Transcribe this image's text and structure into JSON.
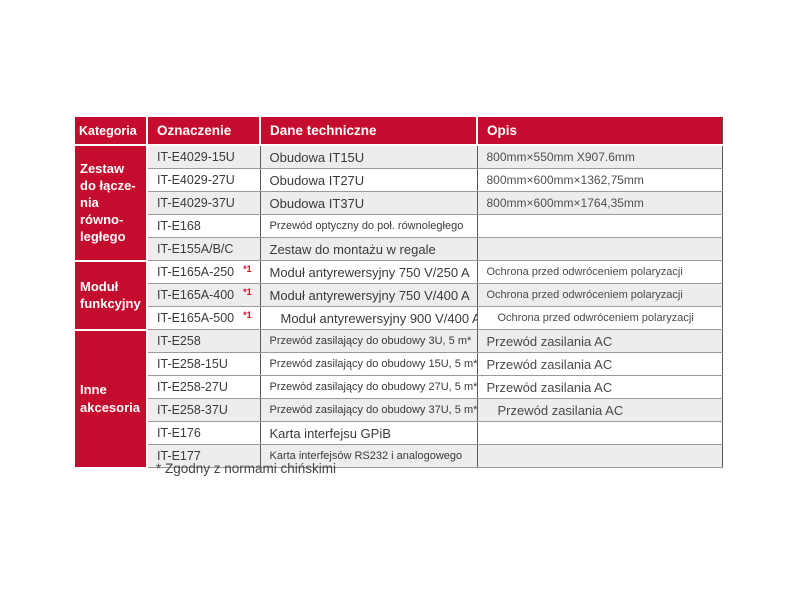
{
  "colors": {
    "header_red": "#c60c2e",
    "stripe_gray": "#ededed",
    "body_text": "#3a3a3a",
    "opis_text": "#4a4a4a",
    "superscript_red": "#e3001e",
    "row_border": "#9a9a9a",
    "column_border": "#5a5a5a"
  },
  "table": {
    "headers": {
      "category": "Kategoria",
      "code": "Oznaczenie",
      "tech": "Dane techniczne",
      "opis": "Opis"
    },
    "categories": [
      {
        "label": "Zestaw\ndo łącze-\nnia równo-\nległego"
      },
      {
        "label": "Moduł\nfunkcyjny"
      },
      {
        "label": "Inne\nakcesoria"
      }
    ],
    "rows": [
      {
        "code": "IT-E4029-15U",
        "tech": "Obudowa IT15U",
        "opis": "800mm×550mm X907.6mm"
      },
      {
        "code": "IT-E4029-27U",
        "tech": "Obudowa IT27U",
        "opis": "800mm×600mm×1362,75mm"
      },
      {
        "code": "IT-E4029-37U",
        "tech": "Obudowa IT37U",
        "opis": "800mm×600mm×1764,35mm"
      },
      {
        "code": "IT-E168",
        "tech": "Przewód optyczny do poł. równoległego",
        "opis": ""
      },
      {
        "code": "IT-E155A/B/C",
        "tech": "Zestaw do montażu w regale",
        "opis": ""
      },
      {
        "code": "IT-E165A-250",
        "sup": "*1",
        "tech": "Moduł antyrewersyjny 750 V/250 A",
        "opis": "Ochrona przed odwróceniem polaryzacji"
      },
      {
        "code": "IT-E165A-400",
        "sup": "*1",
        "tech": "Moduł antyrewersyjny 750 V/400 A",
        "opis": "Ochrona przed odwróceniem polaryzacji"
      },
      {
        "code": "IT-E165A-500",
        "sup": "*1",
        "tech": "Moduł antyrewersyjny 900 V/400 A",
        "opis": "Ochrona przed odwróceniem polaryzacji"
      },
      {
        "code": "IT-E258",
        "tech": "Przewód zasilający do obudowy 3U, 5 m*",
        "opis": "Przewód zasilania AC"
      },
      {
        "code": "IT-E258-15U",
        "tech": "Przewód zasilający do obudowy 15U, 5 m*",
        "opis": "Przewód zasilania AC"
      },
      {
        "code": "IT-E258-27U",
        "tech": "Przewód zasilający do obudowy 27U, 5 m*",
        "opis": "Przewód zasilania AC"
      },
      {
        "code": "IT-E258-37U",
        "tech": "Przewód zasilający do obudowy 37U, 5 m*",
        "opis": "Przewód zasilania AC"
      },
      {
        "code": "IT-E176",
        "tech": "Karta interfejsu GPiB",
        "opis": ""
      },
      {
        "code": "IT-E177",
        "tech": "Karta interfejsów RS232 i analogowego",
        "opis": ""
      }
    ]
  },
  "footnote": "* Zgodny z normami chińskimi"
}
